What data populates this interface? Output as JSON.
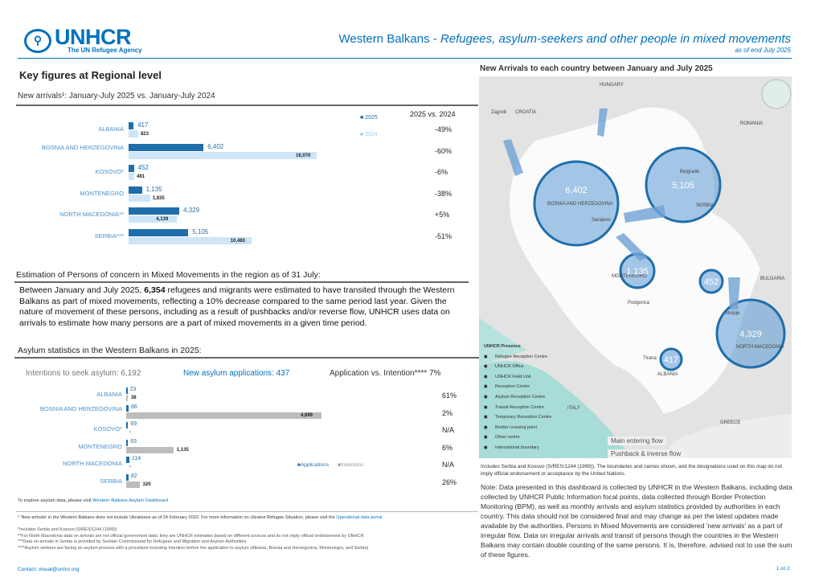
{
  "header": {
    "logo_name": "UNHCR",
    "logo_tagline": "The UN Refugee Agency",
    "title_main": "Western Balkans - ",
    "title_italic": "Refugees, asylum-seekers and other people in mixed movements",
    "as_of": "as of end July 2025"
  },
  "key_figures": {
    "title": "Key figures at Regional level",
    "arrivals_title": "New arrivals¹: January-July 2025 vs. January-July 2024",
    "change_header": "2025 vs. 2024"
  },
  "chart_data": [
    {
      "type": "bar",
      "orientation": "horizontal",
      "categories": [
        "ALBANIA",
        "BOSNIA AND HERZEGOVINA",
        "KOSOVO*",
        "MONTENEGRO",
        "NORTH MACEDONIA**",
        "SERBIA***"
      ],
      "series": [
        {
          "name": "2025",
          "values": [
            417,
            6402,
            452,
            1135,
            4329,
            5105
          ],
          "labels": [
            "417",
            "6,402",
            "452",
            "1,135",
            "4,329",
            "5,105"
          ],
          "color": "#1f6eab"
        },
        {
          "name": "2024",
          "values": [
            823,
            16070,
            481,
            1835,
            4139,
            10483
          ],
          "labels": [
            "823",
            "16,070",
            "481",
            "1,835",
            "4,139",
            "10,483"
          ],
          "color": "#cde5f7"
        }
      ],
      "change": [
        "-49%",
        "-60%",
        "-6%",
        "-38%",
        "+5%",
        "-51%"
      ]
    },
    {
      "type": "bar",
      "orientation": "horizontal",
      "categories": [
        "ALBANIA",
        "BOSNIA AND HERZEGOVINA",
        "KOSOVO*",
        "MONTENEGRO",
        "NORTH MACEDONIA",
        "SERBIA"
      ],
      "series": [
        {
          "name": "Applications",
          "values": [
            23,
            86,
            69,
            63,
            114,
            82
          ],
          "labels": [
            "23",
            "86",
            "69",
            "63",
            "114",
            "82"
          ],
          "color": "#1f6eab"
        },
        {
          "name": "Intentions",
          "values": [
            38,
            4699,
            0,
            1135,
            0,
            320
          ],
          "labels": [
            "38",
            "4,699",
            "-",
            "1,135",
            "-",
            "320"
          ],
          "color": "#bdbdbd"
        }
      ],
      "ratio": [
        "61%",
        "2%",
        "N/A",
        "6%",
        "N/A",
        "26%"
      ]
    }
  ],
  "estimation": {
    "title": "Estimation of Persons of concern in Mixed Movements in the region as of 31 July:",
    "text_before": "Between January and July 2025, ",
    "number": "6,354",
    "text_after": " refugees and migrants were estimated to have transited through the Western Balkans as part of mixed movements, reflecting a 10% decrease compared to the same period last year. Given the nature of movement of these persons, including as a result of pushbacks and/or reverse flow, UNHCR uses data on arrivals to estimate how many persons are a part of mixed movements in a given time period."
  },
  "asylum": {
    "title": "Asylum statistics in the Western Balkans in 2025:",
    "intentions_label": "Intentions to seek asylum:",
    "intentions_value": "6,192",
    "applications_label": "New asylum applications:",
    "applications_value": "437",
    "ratio_label": "Application vs. Intention****",
    "ratio_value": "7%",
    "explore_text": "To explore asylum data, please visit ",
    "explore_link": "Western Balkans Asylum Dashboard"
  },
  "footnotes": {
    "main": "¹ 'New arrivals' in the Western Balkans does not include Ukrainians as of 24 February 2022. For more information on Ukraine Refugee Situation, please visit the ",
    "main_link": "Operational data portal",
    "notes": [
      "*Includes Serbia and Kosovo (S/RES/1244 (1999))",
      "**For North Macedonia data on arrivals are not official government data; they are UNHCR estimates based on different sources and do not imply official endorsement by UNHCR.",
      "***Data on arrivals in Serbia is provided by Serbian Commissariat for Refugees and Migration and Asylum Authorities",
      "****Asylum seekers are facing an asylum process with a procedure including Intention before the application to asylum (Albania, Bosnia and Herzegovina, Montenegro, and Serbia)"
    ],
    "contact": "Contact: visual@unhcr.org"
  },
  "map": {
    "title": "New Arrivals to each country between January and July 2025",
    "labels": {
      "hungary": "HUNGARY",
      "croatia": "CROATIA",
      "zagreb": "Zagreb",
      "romania": "ROMANIA",
      "bosnia": "BOSNIA AND HERZEGOVINA",
      "sarajevo": "Sarajevo",
      "belgrade": "Belgrade",
      "serbia": "SERBIA",
      "montenegro": "MONTENEGRO",
      "podgorica": "Podgorica",
      "bulgaria": "BULGARIA",
      "north_macedonia": "NORTH MACEDONIA",
      "skopje": "Skopje",
      "albania": "ALBANIA",
      "tirana": "Tirana",
      "italy": "ITALY",
      "greece": "GREECE"
    },
    "bubbles": {
      "bosnia": "6,402",
      "serbia": "5,105",
      "montenegro": "1,135",
      "kosovo": "452",
      "north_macedonia": "4,329",
      "albania": "417"
    },
    "legend_title": "UNHCR Presence",
    "legend_items": [
      "Refugee Reception Centre",
      "UNHCR Office",
      "UNHCR Field Unit",
      "Reception Centre",
      "Asylum Reception Centre",
      "Transit Reception Centre",
      "Temporary Reception Centre",
      "Border crossing point",
      "Other centre",
      "International boundary"
    ],
    "flow_main": "Main entering flow",
    "flow_pushback": "Pushback & inverse flow",
    "caption": "Includes Serbia and Kosovo (S/RES/1244 (1999)). The boundaries and names shown, and the designations used on this map do not imply official endorsement or acceptance by the United Nations.",
    "colors": {
      "bubble": "#5b9bd5",
      "bubble_stroke": "#1f6eab",
      "sea": "#9fd8d4",
      "land": "#e6e6e6"
    }
  },
  "note": "Note: Data presented in this dashboard is collected by UNHCR in the Western Balkans, including data collected by UNHCR Public Information focal points, data collected through Border Protection Monitoring (BPM), as well as monthly arrivals and asylum statistics provided by authorities in each country. This data should not be considered final and may change as per the latest updates made available by the authorities. Persons in Mixed Movements are considered 'new arrivals' as a part of irregular flow. Data on irregular arrivals and transit of persons though the countries in the Western Balkans may contain double counting of the same persons. It is, therefore, advised not to use the sum of these figures.",
  "page": "1 on 2"
}
